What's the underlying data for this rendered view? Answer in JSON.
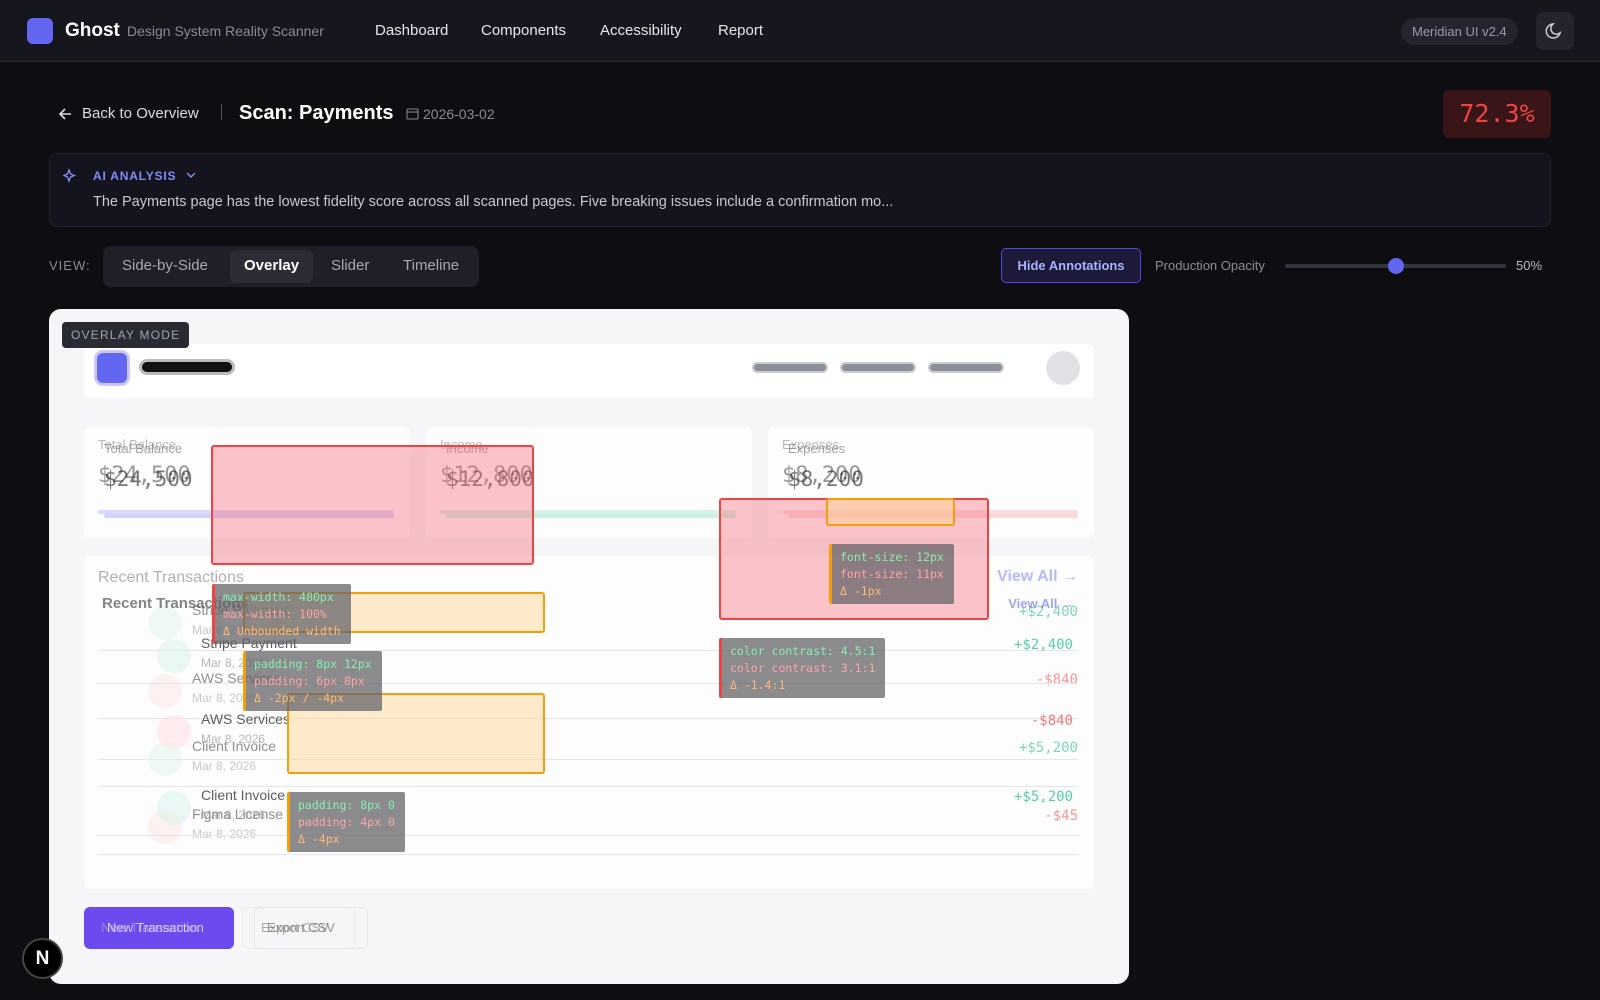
{
  "header": {
    "logo": "Ghost",
    "tagline": "Design System Reality Scanner",
    "nav": [
      "Dashboard",
      "Components",
      "Accessibility",
      "Report"
    ],
    "version": "Meridian UI v2.4"
  },
  "toolbar": {
    "back": "Back to Overview",
    "title": "Scan: Payments",
    "date": "2026-03-02",
    "score": "72.3%"
  },
  "ai_analysis": {
    "label": "AI ANALYSIS",
    "text": "The Payments page has the lowest fidelity score across all scanned pages. Five breaking issues include a confirmation mo..."
  },
  "view": {
    "label": "VIEW:",
    "tabs": [
      "Side-by-Side",
      "Overlay",
      "Slider",
      "Timeline"
    ],
    "active_tab": 1,
    "hide_annotations": "Hide Annotations",
    "opacity_label": "Production Opacity",
    "opacity_value": "50%"
  },
  "canvas": {
    "mode": "OVERLAY MODE",
    "stats": [
      {
        "label": "Total Balance",
        "value": "$24,500"
      },
      {
        "label": "Income",
        "value": "$12,800"
      },
      {
        "label": "Expenses",
        "value": "$8,200"
      }
    ],
    "transactions_title": "Recent Transactions",
    "view_all": "View All →",
    "transactions": [
      {
        "name": "Stripe Payment",
        "date": "Mar 8, 2026",
        "amount": "+$2,400"
      },
      {
        "name": "AWS Services",
        "date": "Mar 8, 2026",
        "amount": "-$840"
      },
      {
        "name": "Client Invoice",
        "date": "Mar 8, 2026",
        "amount": "+$5,200"
      },
      {
        "name": "Figma License",
        "date": "Mar 8, 2026",
        "amount": "-$45"
      }
    ],
    "buttons": [
      "New Transaction",
      "Export CSV"
    ]
  },
  "annotations": [
    {
      "expected": "max-width: 480px",
      "actual": "max-width: 100%",
      "delta": "Δ Unbounded width"
    },
    {
      "expected": "padding: 8px 12px",
      "actual": "padding: 6px 8px",
      "delta": "Δ -2px / -4px"
    },
    {
      "expected": "padding: 8px 0",
      "actual": "padding: 4px 0",
      "delta": "Δ -4px"
    },
    {
      "expected": "font-size: 12px",
      "actual": "font-size: 11px",
      "delta": "Δ -1px"
    },
    {
      "expected": "color contrast: 4.5:1",
      "actual": "color contrast: 3.1:1",
      "delta": "Δ -1.4:1"
    }
  ],
  "corner_badge": "N"
}
